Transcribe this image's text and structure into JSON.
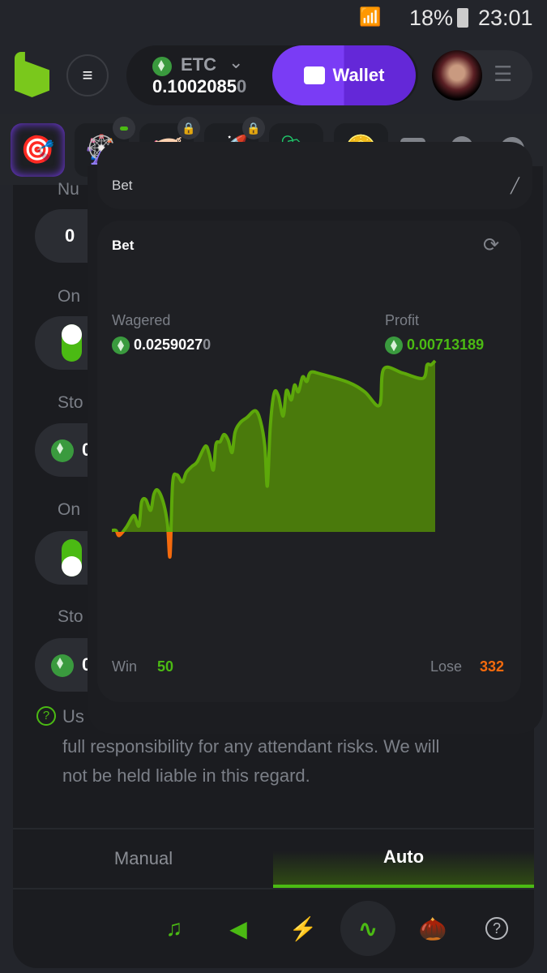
{
  "status_bar": {
    "battery": "18%",
    "time": "23:01"
  },
  "header": {
    "currency": "ETC",
    "balance_main": "0.1002085",
    "balance_dim": "0",
    "wallet_label": "Wallet"
  },
  "strip": {
    "icons": [
      "target-icon",
      "wheel-icon",
      "piggy-bank-icon",
      "rocket-icon",
      "price-tag-icon",
      "coin-icon",
      "mail-icon",
      "bell-icon",
      "chat-icon"
    ]
  },
  "left_panel": {
    "labels": [
      "Nu",
      "On",
      "Sto",
      "On",
      "Sto"
    ],
    "number_value": "0",
    "stop_values": [
      "0",
      "0"
    ],
    "toggles": [
      true,
      false
    ],
    "note_start": "Us",
    "note_line2": "full responsibility for any attendant risks. We will",
    "note_line3": "not be held liable in this regard."
  },
  "overlay": {
    "top_card_title": "Bet",
    "card_title": "Bet",
    "wagered_label": "Wagered",
    "wagered_main": "0.0259027",
    "wagered_dim": "0",
    "profit_label": "Profit",
    "profit_value": "0.00713189",
    "win_label": "Win",
    "win_count": "50",
    "lose_label": "Lose",
    "lose_count": "332"
  },
  "tabs": {
    "manual": "Manual",
    "auto": "Auto",
    "active": "auto"
  },
  "bottom_icons": [
    "music-icon",
    "sound-icon",
    "lightning-icon",
    "curve-icon",
    "acorn-icon",
    "help-icon"
  ],
  "colors": {
    "accent_green": "#4bba13",
    "wallet_purple": "#7a3cf5",
    "loss_orange": "#f46a0d",
    "profit_fill": "#4a7a0c"
  },
  "chart_data": {
    "type": "area",
    "baseline": 0,
    "x": [
      0,
      1.3,
      2.3,
      4.6,
      6.3,
      7.1,
      8.4,
      9.2,
      10.5,
      12.0,
      13.0,
      14.2,
      15.9,
      17.2,
      18.0,
      18.8,
      20.1,
      21.8,
      23.0,
      24.7,
      26.4,
      28.9,
      30.1,
      31.4,
      32.2,
      33.5,
      34.7,
      36.0,
      37.2,
      38.1,
      39.7,
      41.8,
      44.4,
      46.0,
      47.3,
      48.1,
      49.0,
      50.2,
      51.5,
      53.0,
      54.0,
      55.5,
      56.5,
      57.7,
      59.0,
      60.3,
      61.5,
      64.9,
      73.2,
      78.2,
      82.8,
      84.1,
      90.0,
      96.2,
      97.5,
      98.7,
      100
    ],
    "y": [
      6e-05,
      6e-05,
      -0.00015,
      0.00022,
      0.00062,
      0.00065,
      0.00025,
      0.00124,
      0.00135,
      0.0009,
      0.00157,
      0.00174,
      0.00124,
      0.00034,
      -0.00101,
      0.00202,
      0.00238,
      0.00208,
      0.00247,
      0.00272,
      0.00292,
      0.00357,
      0.00326,
      0.00258,
      0.00365,
      0.00376,
      0.00406,
      0.00382,
      0.00331,
      0.00415,
      0.00455,
      0.00477,
      0.00505,
      0.0046,
      0.00359,
      0.00191,
      0.00438,
      0.00578,
      0.00567,
      0.00483,
      0.00589,
      0.0055,
      0.00612,
      0.00584,
      0.00646,
      0.00627,
      0.00665,
      0.00657,
      0.00623,
      0.00584,
      0.00528,
      0.00679,
      0.00662,
      0.0064,
      0.00696,
      0.00696,
      0.00713
    ]
  }
}
